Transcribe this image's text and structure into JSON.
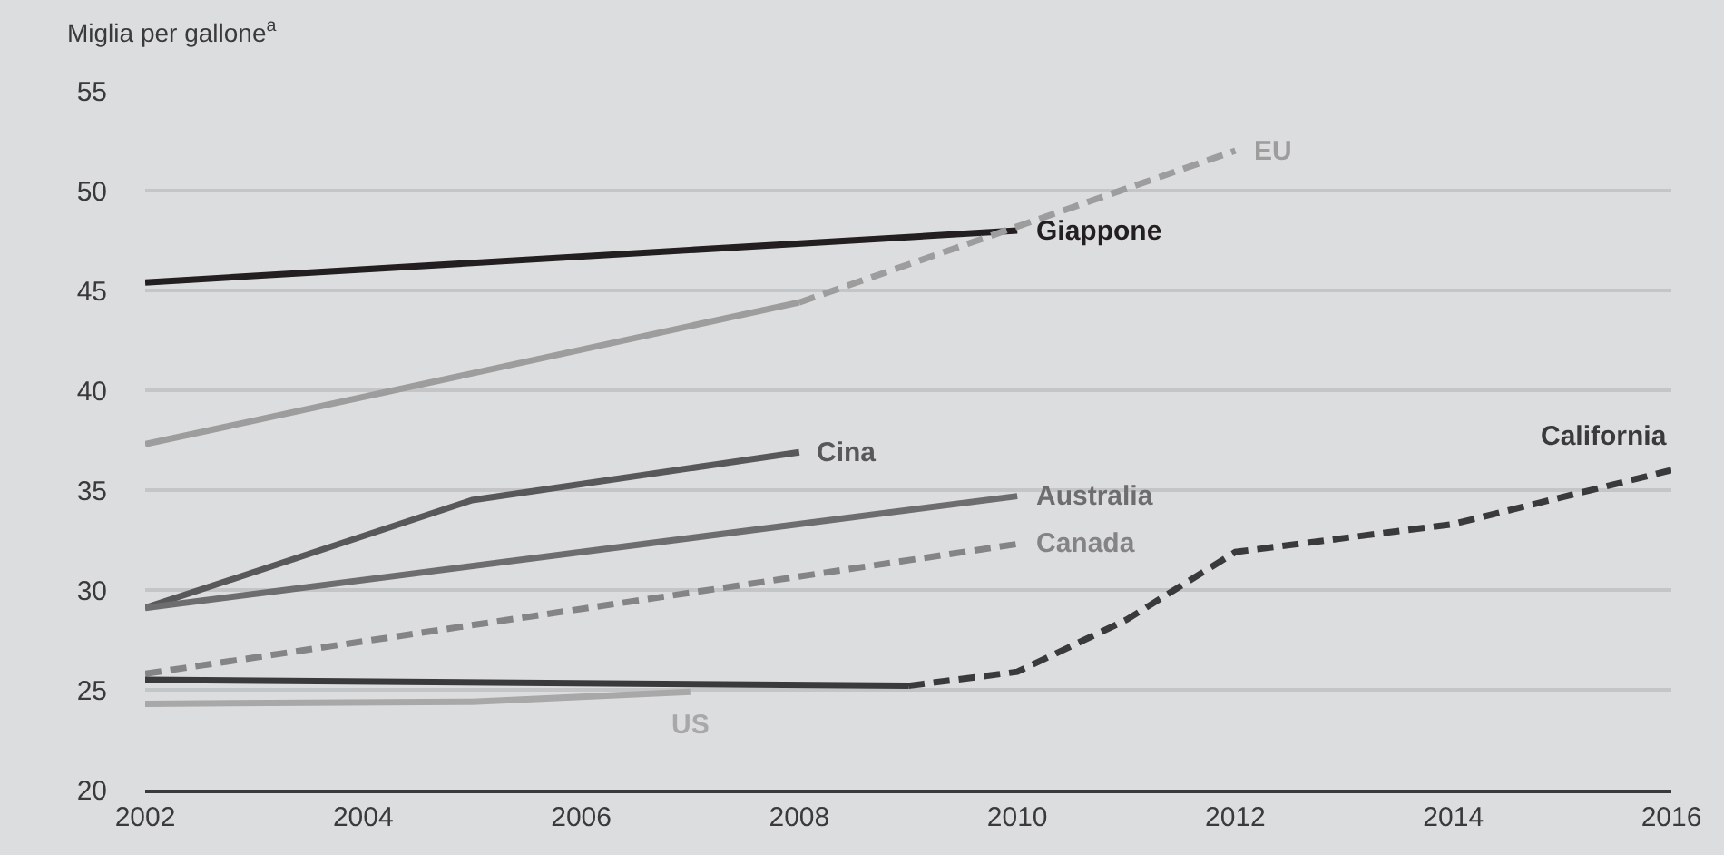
{
  "chart_data": {
    "type": "line",
    "ylabel": "Miglia per gallone$^{a}$",
    "xlim": [
      2002,
      2016
    ],
    "xticks": [
      2002,
      2004,
      2006,
      2008,
      2010,
      2012,
      2014,
      2016
    ],
    "ylim": [
      20,
      55
    ],
    "yticks": [
      20,
      25,
      30,
      35,
      40,
      45,
      50,
      55
    ],
    "grid": "y",
    "legend": false,
    "marker": "none",
    "series": [
      {
        "name": "Giappone",
        "color": "#231f20",
        "line_style": "solid",
        "x": [
          2002,
          2010
        ],
        "values": [
          45.4,
          48.0
        ]
      },
      {
        "color": "#9d9d9d",
        "line_style": "solid",
        "x": [
          2002,
          2008
        ],
        "values": [
          37.3,
          44.4
        ]
      },
      {
        "name": "EU",
        "color": "#9d9d9d",
        "line_style": "dashed",
        "x": [
          2008,
          2012
        ],
        "values": [
          44.4,
          52.0
        ]
      },
      {
        "name": "Cina",
        "color": "#58585a",
        "line_style": "solid",
        "x": [
          2002,
          2005,
          2008
        ],
        "values": [
          29.1,
          34.5,
          36.9
        ]
      },
      {
        "name": "Australia",
        "color": "#6d6d6f",
        "line_style": "solid",
        "x": [
          2002,
          2010
        ],
        "values": [
          29.1,
          34.7
        ]
      },
      {
        "name": "Canada",
        "color": "#848486",
        "line_style": "dashed",
        "x": [
          2002,
          2010
        ],
        "values": [
          25.8,
          32.3
        ]
      },
      {
        "name": "US",
        "color": "#a8a8a8",
        "line_style": "solid",
        "x": [
          2002,
          2005,
          2007
        ],
        "values": [
          24.3,
          24.4,
          24.9
        ]
      },
      {
        "color": "#3a3a3c",
        "line_style": "solid",
        "x": [
          2002,
          2009
        ],
        "values": [
          25.5,
          25.2
        ]
      },
      {
        "name": "California",
        "color": "#3a3a3c",
        "line_style": "dashed",
        "x": [
          2009,
          2010,
          2011,
          2012,
          2014,
          2016
        ],
        "values": [
          25.2,
          25.9,
          28.5,
          31.9,
          33.3,
          36.0
        ]
      }
    ]
  }
}
